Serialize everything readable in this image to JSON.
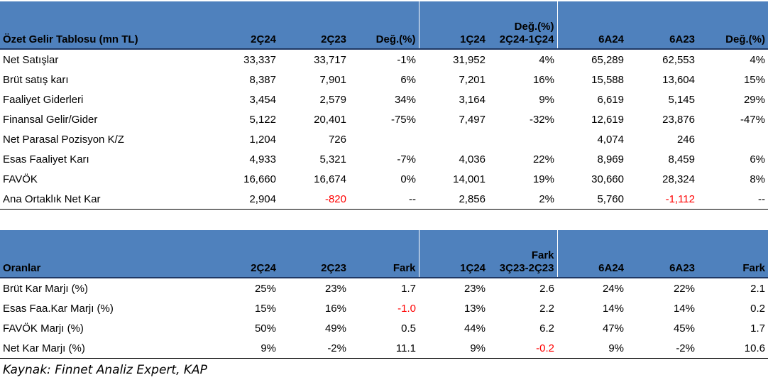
{
  "income": {
    "headers": [
      "Özet Gelir Tablosu (mn TL)",
      "2Ç24",
      "2Ç23",
      "Değ.(%)",
      "1Ç24",
      "Değ.(%) 2Ç24-1Ç24",
      "6A24",
      "6A23",
      "Değ.(%)"
    ],
    "header_line1": "Değ.(%)",
    "header_line2": "2Ç24-1Ç24",
    "rows": [
      [
        "Net Satışlar",
        "33,337",
        "33,717",
        "-1%",
        "31,952",
        "4%",
        "65,289",
        "62,553",
        "4%"
      ],
      [
        "Brüt satış karı",
        "8,387",
        "7,901",
        "6%",
        "7,201",
        "16%",
        "15,588",
        "13,604",
        "15%"
      ],
      [
        "Faaliyet Giderleri",
        "3,454",
        "2,579",
        "34%",
        "3,164",
        "9%",
        "6,619",
        "5,145",
        "29%"
      ],
      [
        "Finansal Gelir/Gider",
        "5,122",
        "20,401",
        "-75%",
        "7,497",
        "-32%",
        "12,619",
        "23,876",
        "-47%"
      ],
      [
        "Net Parasal Pozisyon K/Z",
        "1,204",
        "726",
        "",
        "",
        "",
        "4,074",
        "246",
        ""
      ],
      [
        "Esas Faaliyet Karı",
        "4,933",
        "5,321",
        "-7%",
        "4,036",
        "22%",
        "8,969",
        "8,459",
        "6%"
      ],
      [
        "FAVÖK",
        "16,660",
        "16,674",
        "0%",
        "14,001",
        "19%",
        "30,660",
        "28,324",
        "8%"
      ],
      [
        "Ana Ortaklık Net Kar",
        "2,904",
        "-820",
        "--",
        "2,856",
        "2%",
        "5,760",
        "-1,112",
        "--"
      ]
    ]
  },
  "ratios": {
    "headers": [
      "Oranlar",
      "2Ç24",
      "2Ç23",
      "Fark",
      "1Ç24",
      "Fark 3Ç23-2Ç23",
      "6A24",
      "6A23",
      "Fark"
    ],
    "header_line1": "Fark",
    "header_line2": "3Ç23-2Ç23",
    "rows": [
      [
        "Brüt Kar Marjı (%)",
        "25%",
        "23%",
        "1.7",
        "23%",
        "2.6",
        "24%",
        "22%",
        "2.1"
      ],
      [
        "Esas Faa.Kar Marjı (%)",
        "15%",
        "16%",
        "-1.0",
        "13%",
        "2.2",
        "14%",
        "14%",
        "0.2"
      ],
      [
        "FAVÖK Marjı (%)",
        "50%",
        "49%",
        "0.5",
        "44%",
        "6.2",
        "47%",
        "45%",
        "1.7"
      ],
      [
        "Net Kar Marjı (%)",
        "9%",
        "-2%",
        "11.1",
        "9%",
        "-0.2",
        "9%",
        "-2%",
        "10.6"
      ]
    ]
  },
  "negative_color": "#ff0000",
  "header_color": "#4f81bd",
  "source": "Kaynak: Finnet Analiz Expert, KAP"
}
